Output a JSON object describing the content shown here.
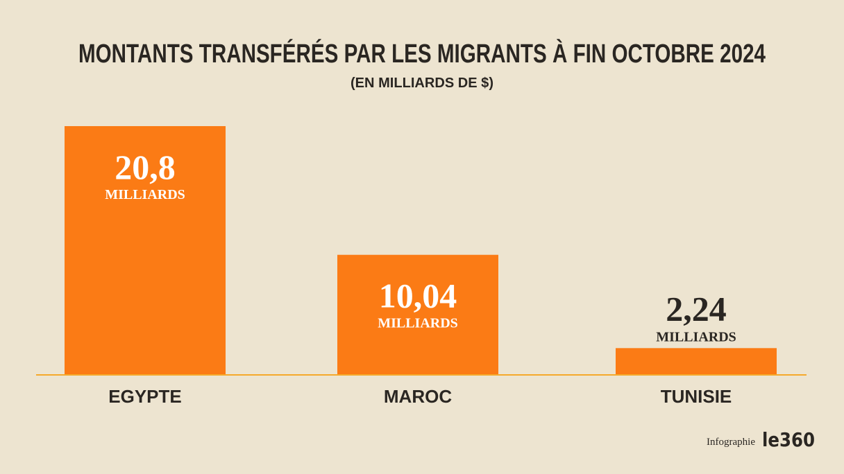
{
  "chart_data": {
    "type": "bar",
    "title": "MONTANTS TRANSFÉRÉS PAR LES MIGRANTS À FIN OCTOBRE 2024",
    "subtitle": "(EN MILLIARDS DE $)",
    "categories": [
      "EGYPTE",
      "MAROC",
      "TUNISIE"
    ],
    "values": [
      20.8,
      10.04,
      2.24
    ],
    "value_labels": [
      "20,8",
      "10,04",
      "2,24"
    ],
    "value_unit": "MILLIARDS",
    "color": "#fb7b15",
    "baseline_color": "#f5a92a"
  },
  "footer": {
    "credit": "Infographie",
    "brand": "le360"
  }
}
